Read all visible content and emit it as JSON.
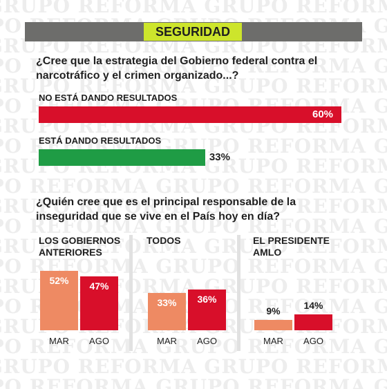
{
  "header": {
    "title": "SEGURIDAD"
  },
  "watermark": {
    "text": "GRUPO REFORMA"
  },
  "colors": {
    "header_bg": "#6d6d6b",
    "header_label_bg": "#cde52c",
    "red": "#d80f2a",
    "green": "#1f9c45",
    "salmon": "#ee8a63"
  },
  "question1": {
    "text": "¿Cree que la estrategia del Gobierno federal contra el narcotráfico y el crimen organizado...?"
  },
  "question2": {
    "text": "¿Quién cree que es el principal responsable de la inseguridad que se vive en el País hoy en día?"
  },
  "chart_data": [
    {
      "type": "bar",
      "orientation": "horizontal",
      "categories": [
        "NO ESTÁ DANDO RESULTADOS",
        "ESTÁ DANDO RESULTADOS"
      ],
      "values": [
        60,
        33
      ],
      "value_labels": [
        "60%",
        "33%"
      ],
      "colors": [
        "#d80f2a",
        "#1f9c45"
      ],
      "xlim": [
        0,
        100
      ]
    },
    {
      "type": "bar",
      "panels": [
        {
          "title": "LOS GOBIERNOS ANTERIORES",
          "categories": [
            "MAR",
            "AGO"
          ],
          "values": [
            52,
            47
          ],
          "value_labels": [
            "52%",
            "47%"
          ]
        },
        {
          "title": "TODOS",
          "categories": [
            "MAR",
            "AGO"
          ],
          "values": [
            33,
            36
          ],
          "value_labels": [
            "33%",
            "36%"
          ]
        },
        {
          "title": "EL PRESIDENTE AMLO",
          "categories": [
            "MAR",
            "AGO"
          ],
          "values": [
            9,
            14
          ],
          "value_labels": [
            "9%",
            "14%"
          ]
        }
      ],
      "colors": [
        "#ee8a63",
        "#d80f2a"
      ],
      "ylim": [
        0,
        100
      ]
    }
  ]
}
